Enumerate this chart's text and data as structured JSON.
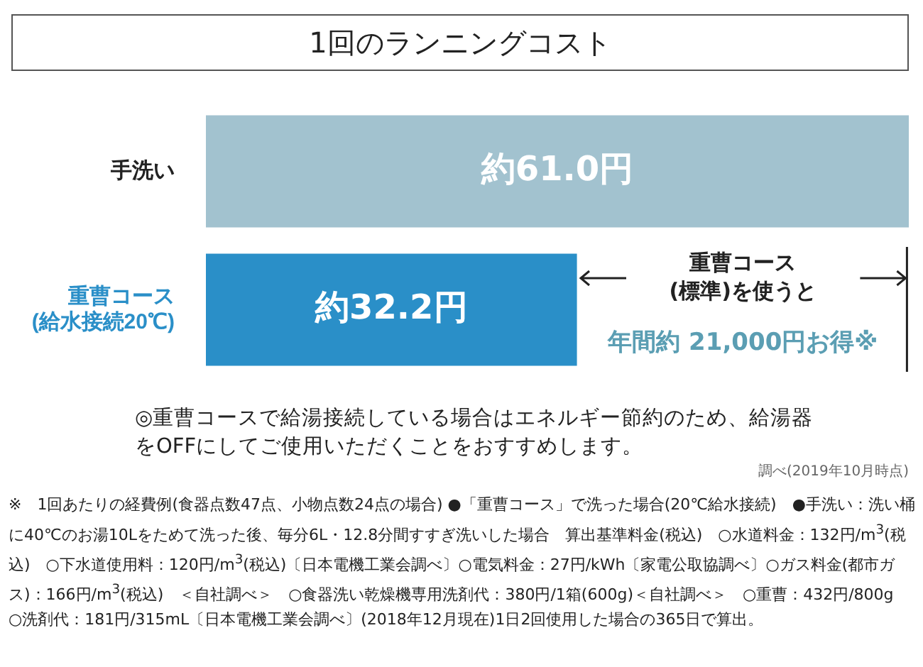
{
  "chart_data": {
    "type": "bar",
    "orientation": "horizontal",
    "title": "1回のランニングコスト",
    "categories": [
      "手洗い",
      "重曹コース\n(給水接続20℃)"
    ],
    "values": [
      61.0,
      32.2
    ],
    "colors": [
      "#a2c2cf",
      "#2a8fc8"
    ],
    "value_labels": [
      "約61.0円",
      "約32.2円"
    ],
    "annotations": [
      "重曹コース\n(標準)を使うと",
      "年間約 21,000円お得※",
      "◎重曹コースで給湯接続している場合はエネルギー節約のため、給湯器をOFFにしてご使用いただくことをおすすめします。",
      "調べ(2019年10月時点)",
      "※　1回あたりの経費例(食器点数47点、小物点数24点の場合)\n●「重曹コース」で洗った場合(20℃給水接続)　●手洗い：洗い桶に40℃のお湯10Lをためて洗った後、毎分6L・12.8分間すすぎ洗いした場合　算出基準料金(税込)　○水道料金：132円/m$^{3}$(税込)　○下水道使用料：120円/m$^{3}$(税込)〔日本電機工業会調べ〕○電気料金：27円/kWh〔家電公取協調べ〕○ガス料金(都市ガス)：166円/m$^{3}$(税込)　＜自社調べ＞　○食器洗い乾燥機専用洗剤代：380円/1箱(600g)＜自社調べ＞　○重曹：432円/800g　○洗剤代：181円/315mL〔日本電機工業会調べ〕(2018年12月現在)1日2回使用した場合の365日で算出。"
    ]
  }
}
